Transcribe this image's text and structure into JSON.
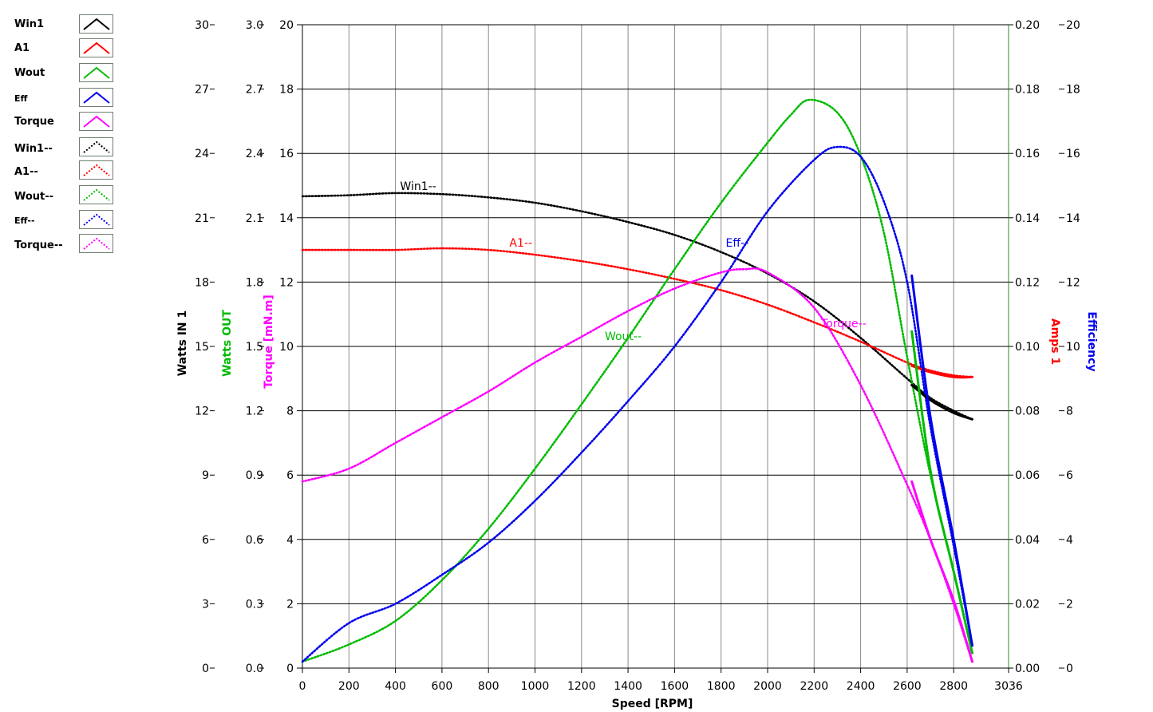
{
  "legend": [
    {
      "label": "Win1",
      "color": "#000000",
      "style": "solid",
      "size": "normal"
    },
    {
      "label": "A1",
      "color": "#ff0000",
      "style": "solid",
      "size": "normal"
    },
    {
      "label": "Wout",
      "color": "#00bb00",
      "style": "solid",
      "size": "normal"
    },
    {
      "label": "Eff",
      "color": "#0000ee",
      "style": "solid",
      "size": "small"
    },
    {
      "label": "Torque",
      "color": "#ff00ff",
      "style": "solid",
      "size": "normal"
    },
    {
      "label": "Win1--",
      "color": "#000000",
      "style": "dotted",
      "size": "normal"
    },
    {
      "label": "A1--",
      "color": "#ff0000",
      "style": "dotted",
      "size": "normal"
    },
    {
      "label": "Wout--",
      "color": "#00bb00",
      "style": "dotted",
      "size": "normal"
    },
    {
      "label": "Eff--",
      "color": "#0000ee",
      "style": "dotted",
      "size": "small"
    },
    {
      "label": "Torque--",
      "color": "#ff00ff",
      "style": "dotted",
      "size": "normal"
    }
  ],
  "chart_data": {
    "type": "line",
    "xlabel": "Speed [RPM]",
    "xlim": [
      0,
      3036
    ],
    "x_ticks": [
      "0",
      "200",
      "400",
      "600",
      "800",
      "1000",
      "1200",
      "1400",
      "1600",
      "1800",
      "2000",
      "2200",
      "2400",
      "2600",
      "2800",
      "3036"
    ],
    "grid": true,
    "axes": {
      "watts_in": {
        "label": "Watts IN 1",
        "color": "#000000",
        "range": [
          0,
          30
        ],
        "ticks": [
          "0",
          "3",
          "6",
          "9",
          "12",
          "15",
          "18",
          "21",
          "24",
          "27",
          "30"
        ]
      },
      "watts_out": {
        "label": "Watts OUT",
        "color": "#00bb00",
        "range": [
          0,
          3.0
        ],
        "ticks": [
          "0.0",
          "0.3",
          "0.6",
          "0.9",
          "1.2",
          "1.5",
          "1.8",
          "2.1",
          "2.4",
          "2.7",
          "3.0"
        ]
      },
      "torque": {
        "label": "Torque [mN.m]",
        "color": "#ff00ff",
        "range": [
          0,
          20
        ],
        "ticks": [
          "0",
          "2",
          "4",
          "6",
          "8",
          "10",
          "12",
          "14",
          "16",
          "18",
          "20"
        ]
      },
      "amps": {
        "label": "Amps 1",
        "color": "#ff0000",
        "range": [
          0,
          0.2
        ],
        "ticks": [
          "0.00",
          "0.02",
          "0.04",
          "0.06",
          "0.08",
          "0.10",
          "0.12",
          "0.14",
          "0.16",
          "0.18",
          "0.20"
        ]
      },
      "efficiency": {
        "label": "Efficiency",
        "color": "#0000ee",
        "range": [
          0,
          20
        ],
        "ticks": [
          "0",
          "2",
          "4",
          "6",
          "8",
          "10",
          "12",
          "14",
          "16",
          "18",
          "20"
        ]
      }
    },
    "series": [
      {
        "name": "Win1--",
        "axis": "watts_in",
        "color": "#000000",
        "style": "dotted",
        "x": [
          0,
          200,
          400,
          600,
          800,
          1000,
          1200,
          1400,
          1600,
          1800,
          2000,
          2200,
          2400,
          2600,
          2700,
          2800,
          2880
        ],
        "y": [
          22.0,
          22.05,
          22.15,
          22.1,
          21.95,
          21.7,
          21.3,
          20.8,
          20.2,
          19.4,
          18.4,
          17.1,
          15.4,
          13.5,
          12.6,
          12.0,
          11.6
        ]
      },
      {
        "name": "A1--",
        "axis": "amps",
        "color": "#ff0000",
        "style": "dotted",
        "x": [
          0,
          200,
          400,
          600,
          800,
          1000,
          1200,
          1400,
          1600,
          1800,
          2000,
          2200,
          2400,
          2600,
          2700,
          2800,
          2880
        ],
        "y": [
          0.13,
          0.13,
          0.13,
          0.1305,
          0.13,
          0.1285,
          0.1265,
          0.124,
          0.121,
          0.1175,
          0.113,
          0.1075,
          0.1015,
          0.095,
          0.0925,
          0.091,
          0.0905
        ]
      },
      {
        "name": "Wout--",
        "axis": "watts_out",
        "color": "#00bb00",
        "style": "dotted",
        "x": [
          0,
          200,
          400,
          600,
          800,
          1000,
          1200,
          1400,
          1600,
          1800,
          2000,
          2100,
          2180,
          2300,
          2400,
          2500,
          2600,
          2700,
          2800,
          2880
        ],
        "y": [
          0.03,
          0.11,
          0.22,
          0.41,
          0.65,
          0.93,
          1.23,
          1.54,
          1.86,
          2.17,
          2.45,
          2.58,
          2.65,
          2.59,
          2.39,
          2.03,
          1.45,
          0.9,
          0.45,
          0.07
        ]
      },
      {
        "name": "Eff--",
        "axis": "efficiency",
        "color": "#0000ee",
        "style": "dotted",
        "x": [
          0,
          200,
          400,
          600,
          800,
          1000,
          1200,
          1400,
          1600,
          1800,
          2000,
          2200,
          2300,
          2400,
          2500,
          2600,
          2700,
          2800,
          2880
        ],
        "y": [
          0.2,
          1.4,
          2.0,
          2.9,
          3.9,
          5.2,
          6.7,
          8.3,
          10.0,
          12.0,
          14.2,
          15.8,
          16.2,
          15.9,
          14.5,
          12.0,
          7.5,
          3.8,
          0.7
        ]
      },
      {
        "name": "Torque--",
        "axis": "torque",
        "color": "#ff00ff",
        "style": "dotted",
        "x": [
          0,
          200,
          400,
          600,
          800,
          1000,
          1200,
          1400,
          1600,
          1800,
          1900,
          2000,
          2200,
          2400,
          2600,
          2700,
          2800,
          2880
        ],
        "y": [
          5.8,
          6.2,
          7.0,
          7.8,
          8.6,
          9.5,
          10.3,
          11.1,
          11.8,
          12.3,
          12.4,
          12.3,
          11.2,
          8.8,
          5.7,
          4.0,
          2.0,
          0.2
        ]
      },
      {
        "name": "Win1",
        "axis": "watts_in",
        "color": "#000000",
        "style": "solid",
        "x": [
          2620,
          2700,
          2800,
          2880
        ],
        "y": [
          13.2,
          12.5,
          11.9,
          11.6
        ]
      },
      {
        "name": "A1",
        "axis": "amps",
        "color": "#ff0000",
        "style": "solid",
        "x": [
          2620,
          2700,
          2800,
          2880
        ],
        "y": [
          0.094,
          0.092,
          0.0905,
          0.0905
        ]
      },
      {
        "name": "Wout",
        "axis": "watts_out",
        "color": "#00bb00",
        "style": "solid",
        "x": [
          2620,
          2700,
          2800,
          2880
        ],
        "y": [
          1.57,
          0.92,
          0.45,
          0.07
        ]
      },
      {
        "name": "Eff",
        "axis": "efficiency",
        "color": "#0000ee",
        "style": "solid",
        "x": [
          2620,
          2700,
          2800,
          2880
        ],
        "y": [
          12.2,
          7.8,
          4.0,
          0.7
        ]
      },
      {
        "name": "Torque",
        "axis": "torque",
        "color": "#ff00ff",
        "style": "solid",
        "x": [
          2620,
          2700,
          2800,
          2880
        ],
        "y": [
          5.8,
          4.0,
          2.1,
          0.2
        ]
      }
    ],
    "annotations": [
      {
        "text": "Win1--",
        "color": "#000000",
        "x": 420,
        "axis": "watts_in",
        "y": 22.3
      },
      {
        "text": "A1--",
        "color": "#ff0000",
        "x": 890,
        "axis": "amps",
        "y": 0.131
      },
      {
        "text": "Wout--",
        "color": "#00bb00",
        "x": 1300,
        "axis": "watts_out",
        "y": 1.53
      },
      {
        "text": "Eff--",
        "color": "#0000ee",
        "x": 1820,
        "axis": "efficiency",
        "y": 13.1
      },
      {
        "text": "Torque--",
        "color": "#ff00ff",
        "x": 2230,
        "axis": "torque",
        "y": 10.6
      }
    ]
  }
}
